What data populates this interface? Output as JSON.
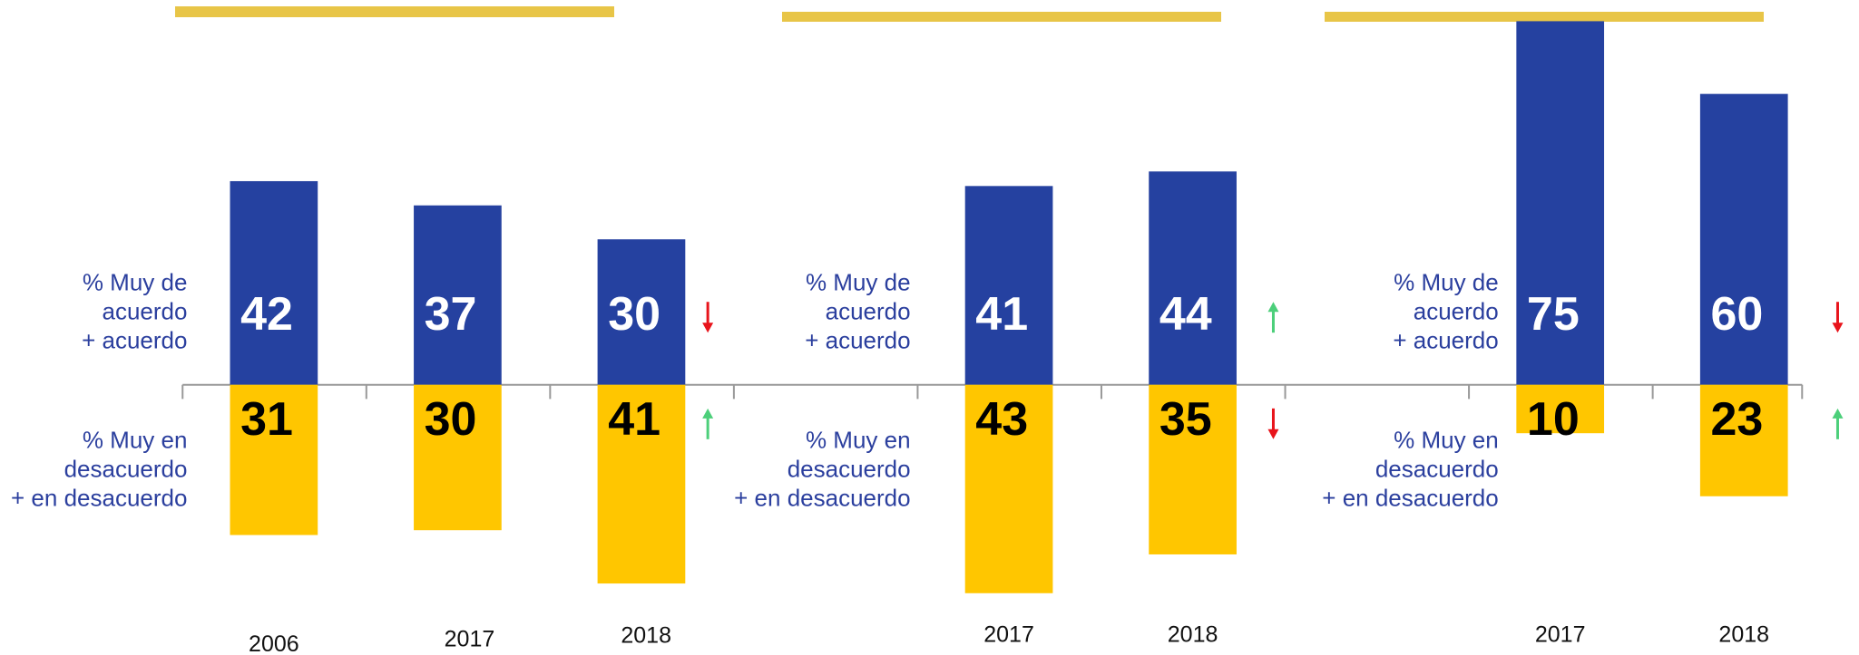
{
  "chart_data": [
    {
      "type": "bar",
      "categories": [
        "2006",
        "2017",
        "2018"
      ],
      "ylim": [
        -60,
        79
      ],
      "series": [
        {
          "name": [
            "% Muy de",
            "acuerdo",
            "+ acuerdo"
          ],
          "color": "#2541a0",
          "label_color": "#ffffff",
          "values": [
            42,
            37,
            30
          ],
          "trend": "down"
        },
        {
          "name": [
            "% Muy en",
            "desacuerdo",
            "+ en desacuerdo"
          ],
          "color": "#ffc600",
          "label_color": "#000000",
          "values": [
            31,
            30,
            41
          ],
          "trend": "up",
          "below": true
        }
      ]
    },
    {
      "type": "bar",
      "categories": [
        "2017",
        "2018"
      ],
      "ylim": [
        -60,
        79
      ],
      "series": [
        {
          "name": [
            "% Muy de",
            "acuerdo",
            "+ acuerdo"
          ],
          "color": "#2541a0",
          "label_color": "#ffffff",
          "values": [
            41,
            44
          ],
          "trend": "up"
        },
        {
          "name": [
            "% Muy en",
            "desacuerdo",
            "+ en desacuerdo"
          ],
          "color": "#ffc600",
          "label_color": "#000000",
          "values": [
            43,
            35
          ],
          "trend": "down",
          "below": true
        }
      ]
    },
    {
      "type": "bar",
      "categories": [
        "2017",
        "2018"
      ],
      "ylim": [
        -60,
        79
      ],
      "series": [
        {
          "name": [
            "% Muy de",
            "acuerdo",
            "+ acuerdo"
          ],
          "color": "#2541a0",
          "label_color": "#ffffff",
          "values": [
            75,
            60
          ],
          "trend": "down"
        },
        {
          "name": [
            "% Muy en",
            "desacuerdo",
            "+ en desacuerdo"
          ],
          "color": "#ffc600",
          "label_color": "#000000",
          "values": [
            10,
            23
          ],
          "trend": "up",
          "below": true
        }
      ]
    }
  ]
}
